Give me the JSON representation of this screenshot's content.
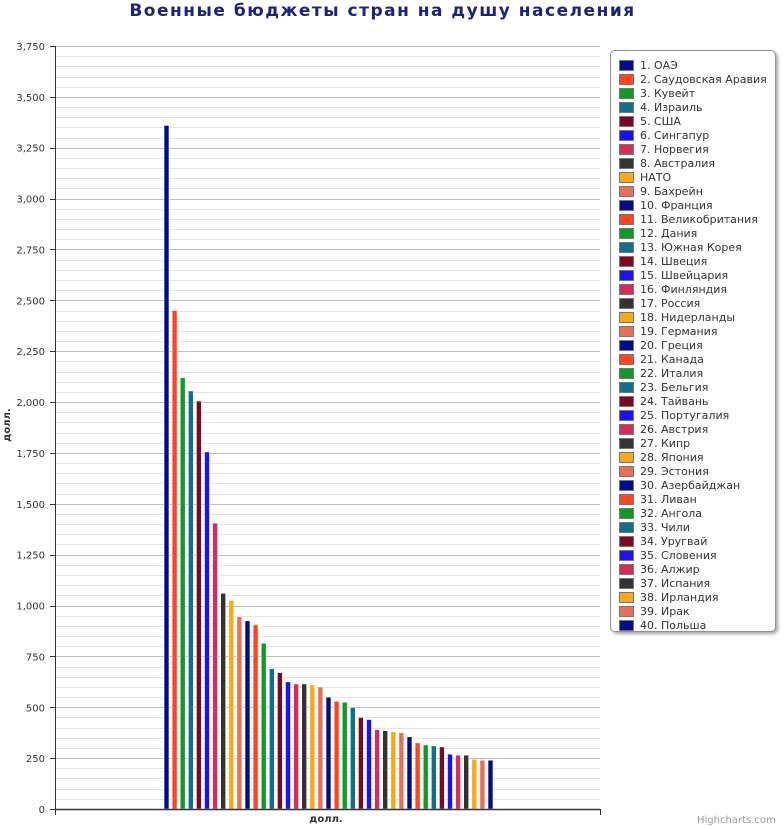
{
  "chart_data": {
    "type": "bar",
    "title": "Военные бюджеты стран на душу населения",
    "xlabel": "долл.",
    "ylabel": "долл.",
    "ylim": [
      0,
      3750
    ],
    "yticks": [
      "0",
      "250",
      "500",
      "750",
      "1,000",
      "1,250",
      "1,500",
      "1,750",
      "2,000",
      "2,250",
      "2,500",
      "2,750",
      "3,000",
      "3,250",
      "3,500",
      "3,750"
    ],
    "grid": true,
    "legend_position": "right",
    "series": [
      {
        "name": "1. ОАЭ",
        "value": 3360,
        "color": "#000d8a"
      },
      {
        "name": "2. Саудовская Аравия",
        "value": 2450,
        "color": "#ff4422"
      },
      {
        "name": "3. Кувейт",
        "value": 2120,
        "color": "#11992a"
      },
      {
        "name": "4. Израиль",
        "value": 2055,
        "color": "#116e8c"
      },
      {
        "name": "5. США",
        "value": 2005,
        "color": "#7a0a24"
      },
      {
        "name": "6. Сингапур",
        "value": 1755,
        "color": "#1a12f5"
      },
      {
        "name": "7. Норвегия",
        "value": 1405,
        "color": "#d42e58"
      },
      {
        "name": "8. Австралия",
        "value": 1060,
        "color": "#333333"
      },
      {
        "name": "НАТО",
        "value": 1025,
        "color": "#f8a818"
      },
      {
        "name": "9. Бахрейн",
        "value": 945,
        "color": "#e8705a"
      },
      {
        "name": "10. Франция",
        "value": 925,
        "color": "#000d8a"
      },
      {
        "name": "11. Великобритания",
        "value": 905,
        "color": "#ff4422"
      },
      {
        "name": "12. Дания",
        "value": 815,
        "color": "#11992a"
      },
      {
        "name": "13. Южная Корея",
        "value": 690,
        "color": "#116e8c"
      },
      {
        "name": "14. Швеция",
        "value": 670,
        "color": "#7a0a24"
      },
      {
        "name": "15. Швейцария",
        "value": 625,
        "color": "#1a12f5"
      },
      {
        "name": "16. Финляндия",
        "value": 615,
        "color": "#d42e58"
      },
      {
        "name": "17. Россия",
        "value": 615,
        "color": "#333333"
      },
      {
        "name": "18. Нидерланды",
        "value": 610,
        "color": "#f8a818"
      },
      {
        "name": "19. Германия",
        "value": 600,
        "color": "#e8705a"
      },
      {
        "name": "20. Греция",
        "value": 550,
        "color": "#000d8a"
      },
      {
        "name": "21. Канада",
        "value": 530,
        "color": "#ff4422"
      },
      {
        "name": "22. Италия",
        "value": 525,
        "color": "#11992a"
      },
      {
        "name": "23. Бельгия",
        "value": 500,
        "color": "#116e8c"
      },
      {
        "name": "24. Тайвань",
        "value": 450,
        "color": "#7a0a24"
      },
      {
        "name": "25. Португалия",
        "value": 440,
        "color": "#1a12f5"
      },
      {
        "name": "26. Австрия",
        "value": 390,
        "color": "#d42e58"
      },
      {
        "name": "27. Кипр",
        "value": 385,
        "color": "#333333"
      },
      {
        "name": "28. Япония",
        "value": 380,
        "color": "#f8a818"
      },
      {
        "name": "29. Эстония",
        "value": 375,
        "color": "#e8705a"
      },
      {
        "name": "30. Азербайджан",
        "value": 355,
        "color": "#000d8a"
      },
      {
        "name": "31. Ливан",
        "value": 325,
        "color": "#ff4422"
      },
      {
        "name": "32. Ангола",
        "value": 315,
        "color": "#11992a"
      },
      {
        "name": "33. Чили",
        "value": 310,
        "color": "#116e8c"
      },
      {
        "name": "34. Уругвай",
        "value": 305,
        "color": "#7a0a24"
      },
      {
        "name": "35. Словения",
        "value": 270,
        "color": "#1a12f5"
      },
      {
        "name": "36. Алжир",
        "value": 265,
        "color": "#d42e58"
      },
      {
        "name": "37. Испания",
        "value": 265,
        "color": "#333333"
      },
      {
        "name": "38. Ирландия",
        "value": 245,
        "color": "#f8a818"
      },
      {
        "name": "39. Ирак",
        "value": 240,
        "color": "#e8705a"
      },
      {
        "name": "40. Польша",
        "value": 240,
        "color": "#000d8a"
      }
    ]
  },
  "credits": "Highcharts.com"
}
